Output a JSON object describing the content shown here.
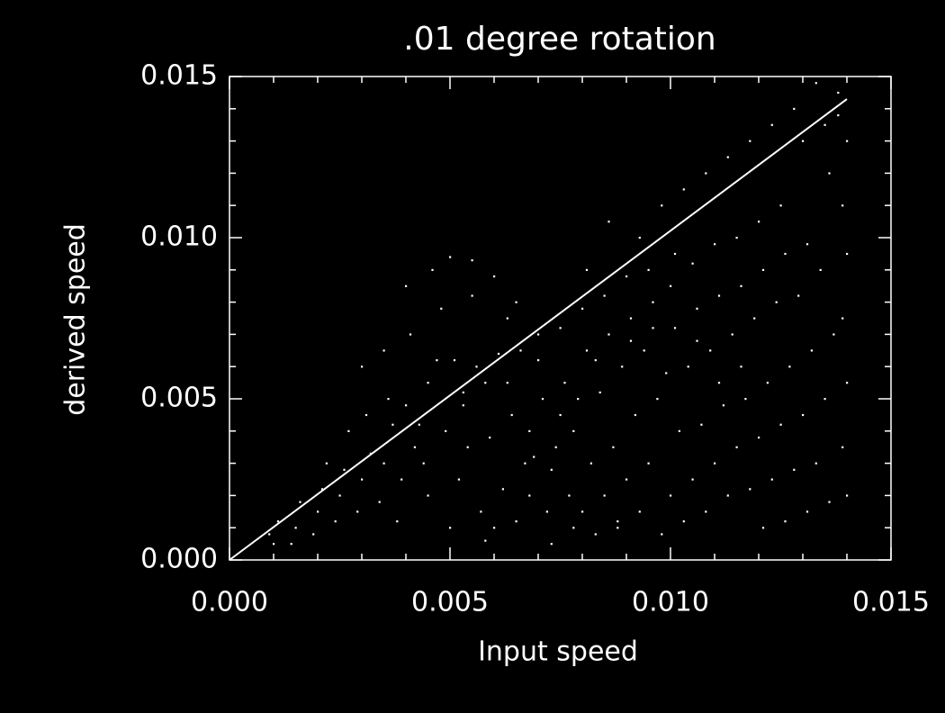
{
  "chart_data": {
    "type": "scatter",
    "title": ".01 degree rotation",
    "xlabel": "Input speed",
    "ylabel": "derived speed",
    "xlim": [
      0,
      0.015
    ],
    "ylim": [
      0,
      0.015
    ],
    "xticks": [
      {
        "value": 0,
        "label": "0.000"
      },
      {
        "value": 0.005,
        "label": "0.005"
      },
      {
        "value": 0.01,
        "label": "0.010"
      },
      {
        "value": 0.015,
        "label": "0.015"
      }
    ],
    "yticks": [
      {
        "value": 0,
        "label": "0.000"
      },
      {
        "value": 0.005,
        "label": "0.005"
      },
      {
        "value": 0.01,
        "label": "0.010"
      },
      {
        "value": 0.015,
        "label": "0.015"
      }
    ],
    "xminorticks": [
      0.001,
      0.002,
      0.003,
      0.004,
      0.006,
      0.007,
      0.008,
      0.009,
      0.011,
      0.012,
      0.013,
      0.014
    ],
    "yminorticks": [
      0.001,
      0.002,
      0.003,
      0.004,
      0.006,
      0.007,
      0.008,
      0.009,
      0.011,
      0.012,
      0.013,
      0.014
    ],
    "series": [
      {
        "type": "scatter",
        "color": "#ffffff",
        "x": [
          0.001,
          0.0011,
          0.0009,
          0.0015,
          0.0016,
          0.0014,
          0.002,
          0.0021,
          0.0019,
          0.0022,
          0.0025,
          0.0026,
          0.0024,
          0.0027,
          0.003,
          0.0031,
          0.0029,
          0.0032,
          0.003,
          0.0035,
          0.0036,
          0.0034,
          0.0035,
          0.0037,
          0.004,
          0.0041,
          0.0039,
          0.0042,
          0.004,
          0.0038,
          0.0045,
          0.0046,
          0.0044,
          0.0047,
          0.0045,
          0.0043,
          0.005,
          0.0051,
          0.0049,
          0.0052,
          0.005,
          0.0048,
          0.0053,
          0.0055,
          0.0056,
          0.0054,
          0.0057,
          0.0055,
          0.0053,
          0.0058,
          0.006,
          0.0061,
          0.0059,
          0.0062,
          0.006,
          0.0058,
          0.0063,
          0.0065,
          0.0066,
          0.0064,
          0.0067,
          0.0065,
          0.0063,
          0.0068,
          0.007,
          0.0071,
          0.0069,
          0.0072,
          0.007,
          0.0068,
          0.0073,
          0.0075,
          0.0076,
          0.0074,
          0.0077,
          0.0075,
          0.0073,
          0.0078,
          0.008,
          0.0081,
          0.0079,
          0.0082,
          0.008,
          0.0078,
          0.0083,
          0.0081,
          0.0085,
          0.0086,
          0.0084,
          0.0087,
          0.0085,
          0.0083,
          0.0088,
          0.0086,
          0.009,
          0.0091,
          0.0089,
          0.0092,
          0.009,
          0.0088,
          0.0093,
          0.0091,
          0.0095,
          0.0096,
          0.0094,
          0.0097,
          0.0095,
          0.0093,
          0.0098,
          0.0096,
          0.01,
          0.0101,
          0.0099,
          0.0102,
          0.01,
          0.0098,
          0.0103,
          0.0101,
          0.0105,
          0.0106,
          0.0104,
          0.0107,
          0.0105,
          0.0103,
          0.0108,
          0.0106,
          0.011,
          0.0111,
          0.0109,
          0.0112,
          0.011,
          0.0108,
          0.0113,
          0.0111,
          0.0115,
          0.0116,
          0.0114,
          0.0117,
          0.0115,
          0.0113,
          0.0118,
          0.0116,
          0.012,
          0.0121,
          0.0119,
          0.0122,
          0.012,
          0.0118,
          0.0123,
          0.0121,
          0.0125,
          0.0126,
          0.0124,
          0.0127,
          0.0125,
          0.0123,
          0.0128,
          0.0126,
          0.013,
          0.0131,
          0.0129,
          0.0132,
          0.013,
          0.0128,
          0.0133,
          0.0131,
          0.0135,
          0.0136,
          0.0134,
          0.0137,
          0.0135,
          0.0133,
          0.0138,
          0.0136,
          0.014,
          0.0139,
          0.014,
          0.0139,
          0.014,
          0.0139,
          0.014,
          0.0138
        ],
        "values": [
          0.0005,
          0.0012,
          0.0008,
          0.001,
          0.0018,
          0.0005,
          0.0015,
          0.0022,
          0.0008,
          0.003,
          0.002,
          0.0028,
          0.0012,
          0.004,
          0.0025,
          0.0045,
          0.0015,
          0.0033,
          0.006,
          0.003,
          0.005,
          0.0018,
          0.0065,
          0.0042,
          0.0048,
          0.007,
          0.0025,
          0.0035,
          0.0085,
          0.0012,
          0.0055,
          0.009,
          0.003,
          0.0062,
          0.002,
          0.0042,
          0.0094,
          0.0062,
          0.004,
          0.0025,
          0.001,
          0.0078,
          0.0052,
          0.0093,
          0.006,
          0.0035,
          0.0015,
          0.0082,
          0.0048,
          0.0006,
          0.0088,
          0.0064,
          0.0038,
          0.0022,
          0.001,
          0.0055,
          0.0075,
          0.008,
          0.0065,
          0.0045,
          0.003,
          0.0012,
          0.0055,
          0.002,
          0.007,
          0.005,
          0.0032,
          0.0015,
          0.0062,
          0.004,
          0.0005,
          0.0072,
          0.0055,
          0.0035,
          0.002,
          0.0045,
          0.0028,
          0.001,
          0.0078,
          0.0065,
          0.005,
          0.003,
          0.0015,
          0.004,
          0.0008,
          0.009,
          0.0082,
          0.007,
          0.0052,
          0.0035,
          0.002,
          0.0062,
          0.001,
          0.0105,
          0.0088,
          0.0075,
          0.006,
          0.0045,
          0.0025,
          0.0012,
          0.01,
          0.0068,
          0.009,
          0.008,
          0.0065,
          0.005,
          0.003,
          0.0015,
          0.011,
          0.0072,
          0.0085,
          0.0072,
          0.0058,
          0.004,
          0.002,
          0.0008,
          0.0115,
          0.0095,
          0.0092,
          0.0078,
          0.006,
          0.0042,
          0.0025,
          0.0012,
          0.012,
          0.0068,
          0.0098,
          0.0082,
          0.0065,
          0.0048,
          0.003,
          0.0015,
          0.0125,
          0.0055,
          0.01,
          0.0085,
          0.007,
          0.005,
          0.0035,
          0.002,
          0.013,
          0.006,
          0.0105,
          0.009,
          0.0075,
          0.0055,
          0.0038,
          0.0022,
          0.0135,
          0.001,
          0.011,
          0.0095,
          0.008,
          0.006,
          0.0042,
          0.0025,
          0.014,
          0.0012,
          0.013,
          0.0098,
          0.0082,
          0.0065,
          0.0045,
          0.0028,
          0.0148,
          0.0015,
          0.0135,
          0.012,
          0.009,
          0.007,
          0.005,
          0.003,
          0.0145,
          0.0018,
          0.013,
          0.011,
          0.0095,
          0.0075,
          0.0055,
          0.0035,
          0.002,
          0.0138
        ]
      },
      {
        "type": "line",
        "color": "#ffffff",
        "x": [
          0,
          0.014
        ],
        "values": [
          0,
          0.0143
        ]
      }
    ]
  }
}
